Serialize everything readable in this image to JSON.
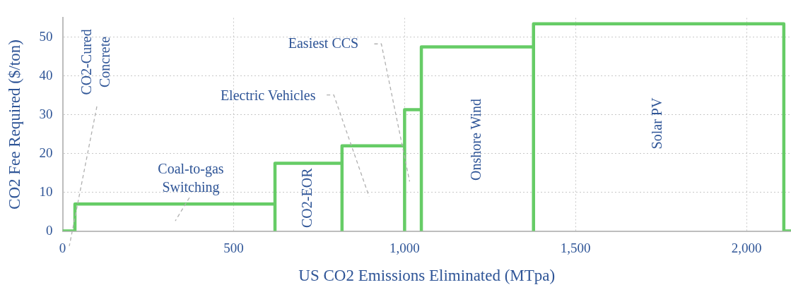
{
  "chart_data": {
    "type": "line",
    "xlabel": "US CO2 Emissions Eliminated (MTpa)",
    "ylabel": "CO2 Fee Required ($/ton)",
    "x": [
      0,
      36,
      36,
      621,
      621,
      621,
      817,
      817,
      817,
      1000,
      1000,
      1000,
      1049,
      1049,
      1049,
      1377,
      1377,
      1377,
      2109,
      2109,
      2130
    ],
    "series": [
      {
        "color": "#66cc66",
        "values": [
          0,
          0,
          7,
          7,
          0,
          17.5,
          17.5,
          0,
          22,
          22,
          0,
          31.3,
          31.3,
          0,
          47.5,
          47.5,
          0,
          53.5,
          53.5,
          0,
          0
        ]
      }
    ],
    "xlim": [
      0,
      2130
    ],
    "xticks": [
      0,
      500,
      {
        "value": 1000,
        "label": "1,000"
      },
      {
        "value": 1500,
        "label": "1,500"
      },
      {
        "value": 2000,
        "label": "2,000"
      }
    ],
    "ylim": [
      0,
      55
    ],
    "yticks": [
      0,
      10,
      20,
      30,
      40,
      50
    ],
    "grid": true,
    "legend": false,
    "marker": "none",
    "line_style": "solid",
    "annotations": [
      "CO2-Cured Concrete",
      "Coal-to-gas Switching",
      "Electric Vehicles",
      "Easiest CCS",
      "CO2-EOR",
      "Onshore Wind",
      "Solar PV"
    ]
  }
}
